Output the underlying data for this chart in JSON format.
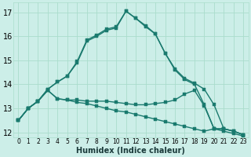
{
  "title": "",
  "xlabel": "Humidex (Indice chaleur)",
  "background_color": "#cceee8",
  "grid_color": "#aaddcc",
  "line_color": "#1a7a6e",
  "xlim": [
    -0.5,
    23.5
  ],
  "ylim": [
    11.8,
    17.4
  ],
  "yticks": [
    12,
    13,
    14,
    15,
    16,
    17
  ],
  "xticks": [
    0,
    1,
    2,
    3,
    4,
    5,
    6,
    7,
    8,
    9,
    10,
    11,
    12,
    13,
    14,
    15,
    16,
    17,
    18,
    19,
    20,
    21,
    22,
    23
  ],
  "line1_x": [
    0,
    1,
    2,
    3,
    4,
    5,
    6,
    7,
    8,
    9,
    10,
    11,
    12,
    13,
    14,
    15,
    16,
    17,
    18,
    19,
    20,
    21,
    22,
    23
  ],
  "line1_y": [
    12.5,
    13.0,
    13.3,
    13.8,
    14.1,
    14.35,
    14.9,
    15.8,
    16.0,
    16.25,
    16.35,
    17.05,
    16.75,
    16.4,
    16.1,
    15.3,
    14.6,
    14.2,
    14.0,
    13.15,
    12.15,
    12.15,
    12.05,
    11.9
  ],
  "line2_x": [
    0,
    1,
    2,
    3,
    4,
    5,
    6,
    7,
    8,
    9,
    10,
    11,
    12,
    13,
    14,
    15,
    16,
    17,
    18,
    19,
    20,
    21,
    22,
    23
  ],
  "line2_y": [
    12.5,
    13.0,
    13.3,
    13.75,
    13.4,
    13.35,
    13.35,
    13.3,
    13.3,
    13.3,
    13.25,
    13.2,
    13.15,
    13.15,
    13.2,
    13.25,
    13.35,
    13.6,
    13.75,
    13.1,
    12.15,
    12.15,
    12.05,
    11.9
  ],
  "line3_x": [
    0,
    1,
    2,
    3,
    4,
    5,
    6,
    7,
    8,
    9,
    10,
    11,
    12,
    13,
    14,
    15,
    16,
    17,
    18,
    19,
    20,
    21,
    22,
    23
  ],
  "line3_y": [
    12.5,
    13.0,
    13.3,
    13.75,
    13.4,
    13.35,
    13.25,
    13.2,
    13.1,
    13.0,
    12.9,
    12.85,
    12.75,
    12.65,
    12.55,
    12.45,
    12.35,
    12.25,
    12.15,
    12.05,
    12.15,
    12.05,
    11.95,
    11.85
  ],
  "line4_x": [
    0,
    1,
    2,
    3,
    4,
    5,
    6,
    7,
    8,
    9,
    10,
    11,
    12,
    13,
    14,
    15,
    16,
    17,
    18,
    19,
    20,
    21,
    22,
    23
  ],
  "line4_y": [
    12.5,
    13.0,
    13.3,
    13.8,
    14.1,
    14.35,
    14.95,
    15.85,
    16.05,
    16.3,
    16.4,
    17.05,
    16.75,
    16.45,
    16.1,
    15.3,
    14.65,
    14.25,
    14.05,
    13.8,
    13.15,
    12.15,
    12.05,
    11.9
  ]
}
